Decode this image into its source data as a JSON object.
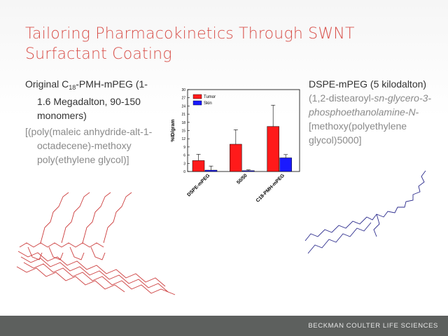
{
  "slide": {
    "title_line1": "Tailoring Pharmacokinetics Through SWNT",
    "title_line2": "Surfactant Coating"
  },
  "left": {
    "line1_pre": "Original C",
    "line1_sub": "18",
    "line1_post": "-PMH-mPEG (1-",
    "line2": "1.6 Megadalton, 90-150",
    "line3": "monomers)",
    "gray1": "[(poly(maleic anhydride-alt-1-",
    "gray2": "octadecene)-methoxy",
    "gray3": "poly(ethylene glycol)]"
  },
  "right": {
    "line1": "DSPE-mPEG (5 kilodalton)",
    "gray1": "(1,2-distearoyl-",
    "gray1_italic": "sn-glycero-3-",
    "gray2_italic": "phosphoethanolamine-N-",
    "gray3": "[methoxy(polyethylene",
    "gray4": "glycol)5000]"
  },
  "footer": {
    "text": "BECKMAN COULTER LIFE SCIENCES"
  },
  "colors": {
    "title": "#d8504a",
    "tumor": "#ff1a1a",
    "skin": "#1a1aff",
    "left_structure": "#cc3b3b",
    "right_structure": "#2a2a8c",
    "footer_bg": "#5d605e"
  },
  "chart_data": {
    "type": "bar",
    "categories": [
      "DSPE-mPEG",
      "50/50",
      "C18-PMH-mPEG"
    ],
    "series": [
      {
        "name": "Tumor",
        "color": "#ff1a1a",
        "values": [
          4,
          10,
          16.5
        ],
        "errors": [
          2.3,
          5.3,
          7.8
        ]
      },
      {
        "name": "Skin",
        "color": "#1a1aff",
        "values": [
          0.5,
          0.3,
          5
        ],
        "errors": [
          1.5,
          0.3,
          1.2
        ]
      }
    ],
    "ylabel": "%ID/gram",
    "ylim": [
      0,
      30
    ],
    "yticks": [
      "0",
      "3",
      "6",
      "9",
      "12",
      "15",
      "18",
      "21",
      "24",
      "27",
      "30"
    ],
    "legend_position": "top-left",
    "grid": false
  }
}
